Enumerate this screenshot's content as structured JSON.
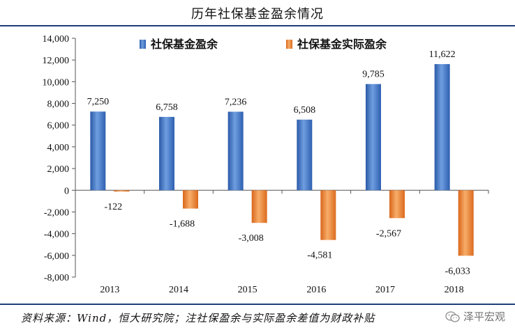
{
  "chart_data": {
    "type": "bar",
    "title": "历年社保基金盈余情况",
    "categories": [
      "2013",
      "2014",
      "2015",
      "2016",
      "2017",
      "2018"
    ],
    "series": [
      {
        "name": "社保基金盈余",
        "values": [
          7250,
          6758,
          7236,
          6508,
          9785,
          11622
        ],
        "labels": [
          "7,250",
          "6,758",
          "7,236",
          "6,508",
          "9,785",
          "11,622"
        ],
        "color": "#3a6fc4"
      },
      {
        "name": "社保基金实际盈余",
        "values": [
          -122,
          -1688,
          -3008,
          -4581,
          -2567,
          -6033
        ],
        "labels": [
          "-122",
          "-1,688",
          "-3,008",
          "-4,581",
          "-2,567",
          "-6,033"
        ],
        "color": "#f08a30"
      }
    ],
    "ylim": [
      -8000,
      14000
    ],
    "yticks": [
      14000,
      12000,
      10000,
      8000,
      6000,
      4000,
      2000,
      0,
      -2000,
      -4000,
      -6000,
      -8000
    ],
    "ytick_labels": [
      "14,000",
      "12,000",
      "10,000",
      "8,000",
      "6,000",
      "4,000",
      "2,000",
      "0",
      "-2,000",
      "-4,000",
      "-6,000",
      "-8,000"
    ],
    "grid": false,
    "legend": "top"
  },
  "footer": {
    "source": "资料来源：Wind，恒大研究院；注社保盈余与实际盈余差值为财政补贴",
    "watermark": "泽平宏观",
    "watermark_icon": "wechat-icon"
  }
}
